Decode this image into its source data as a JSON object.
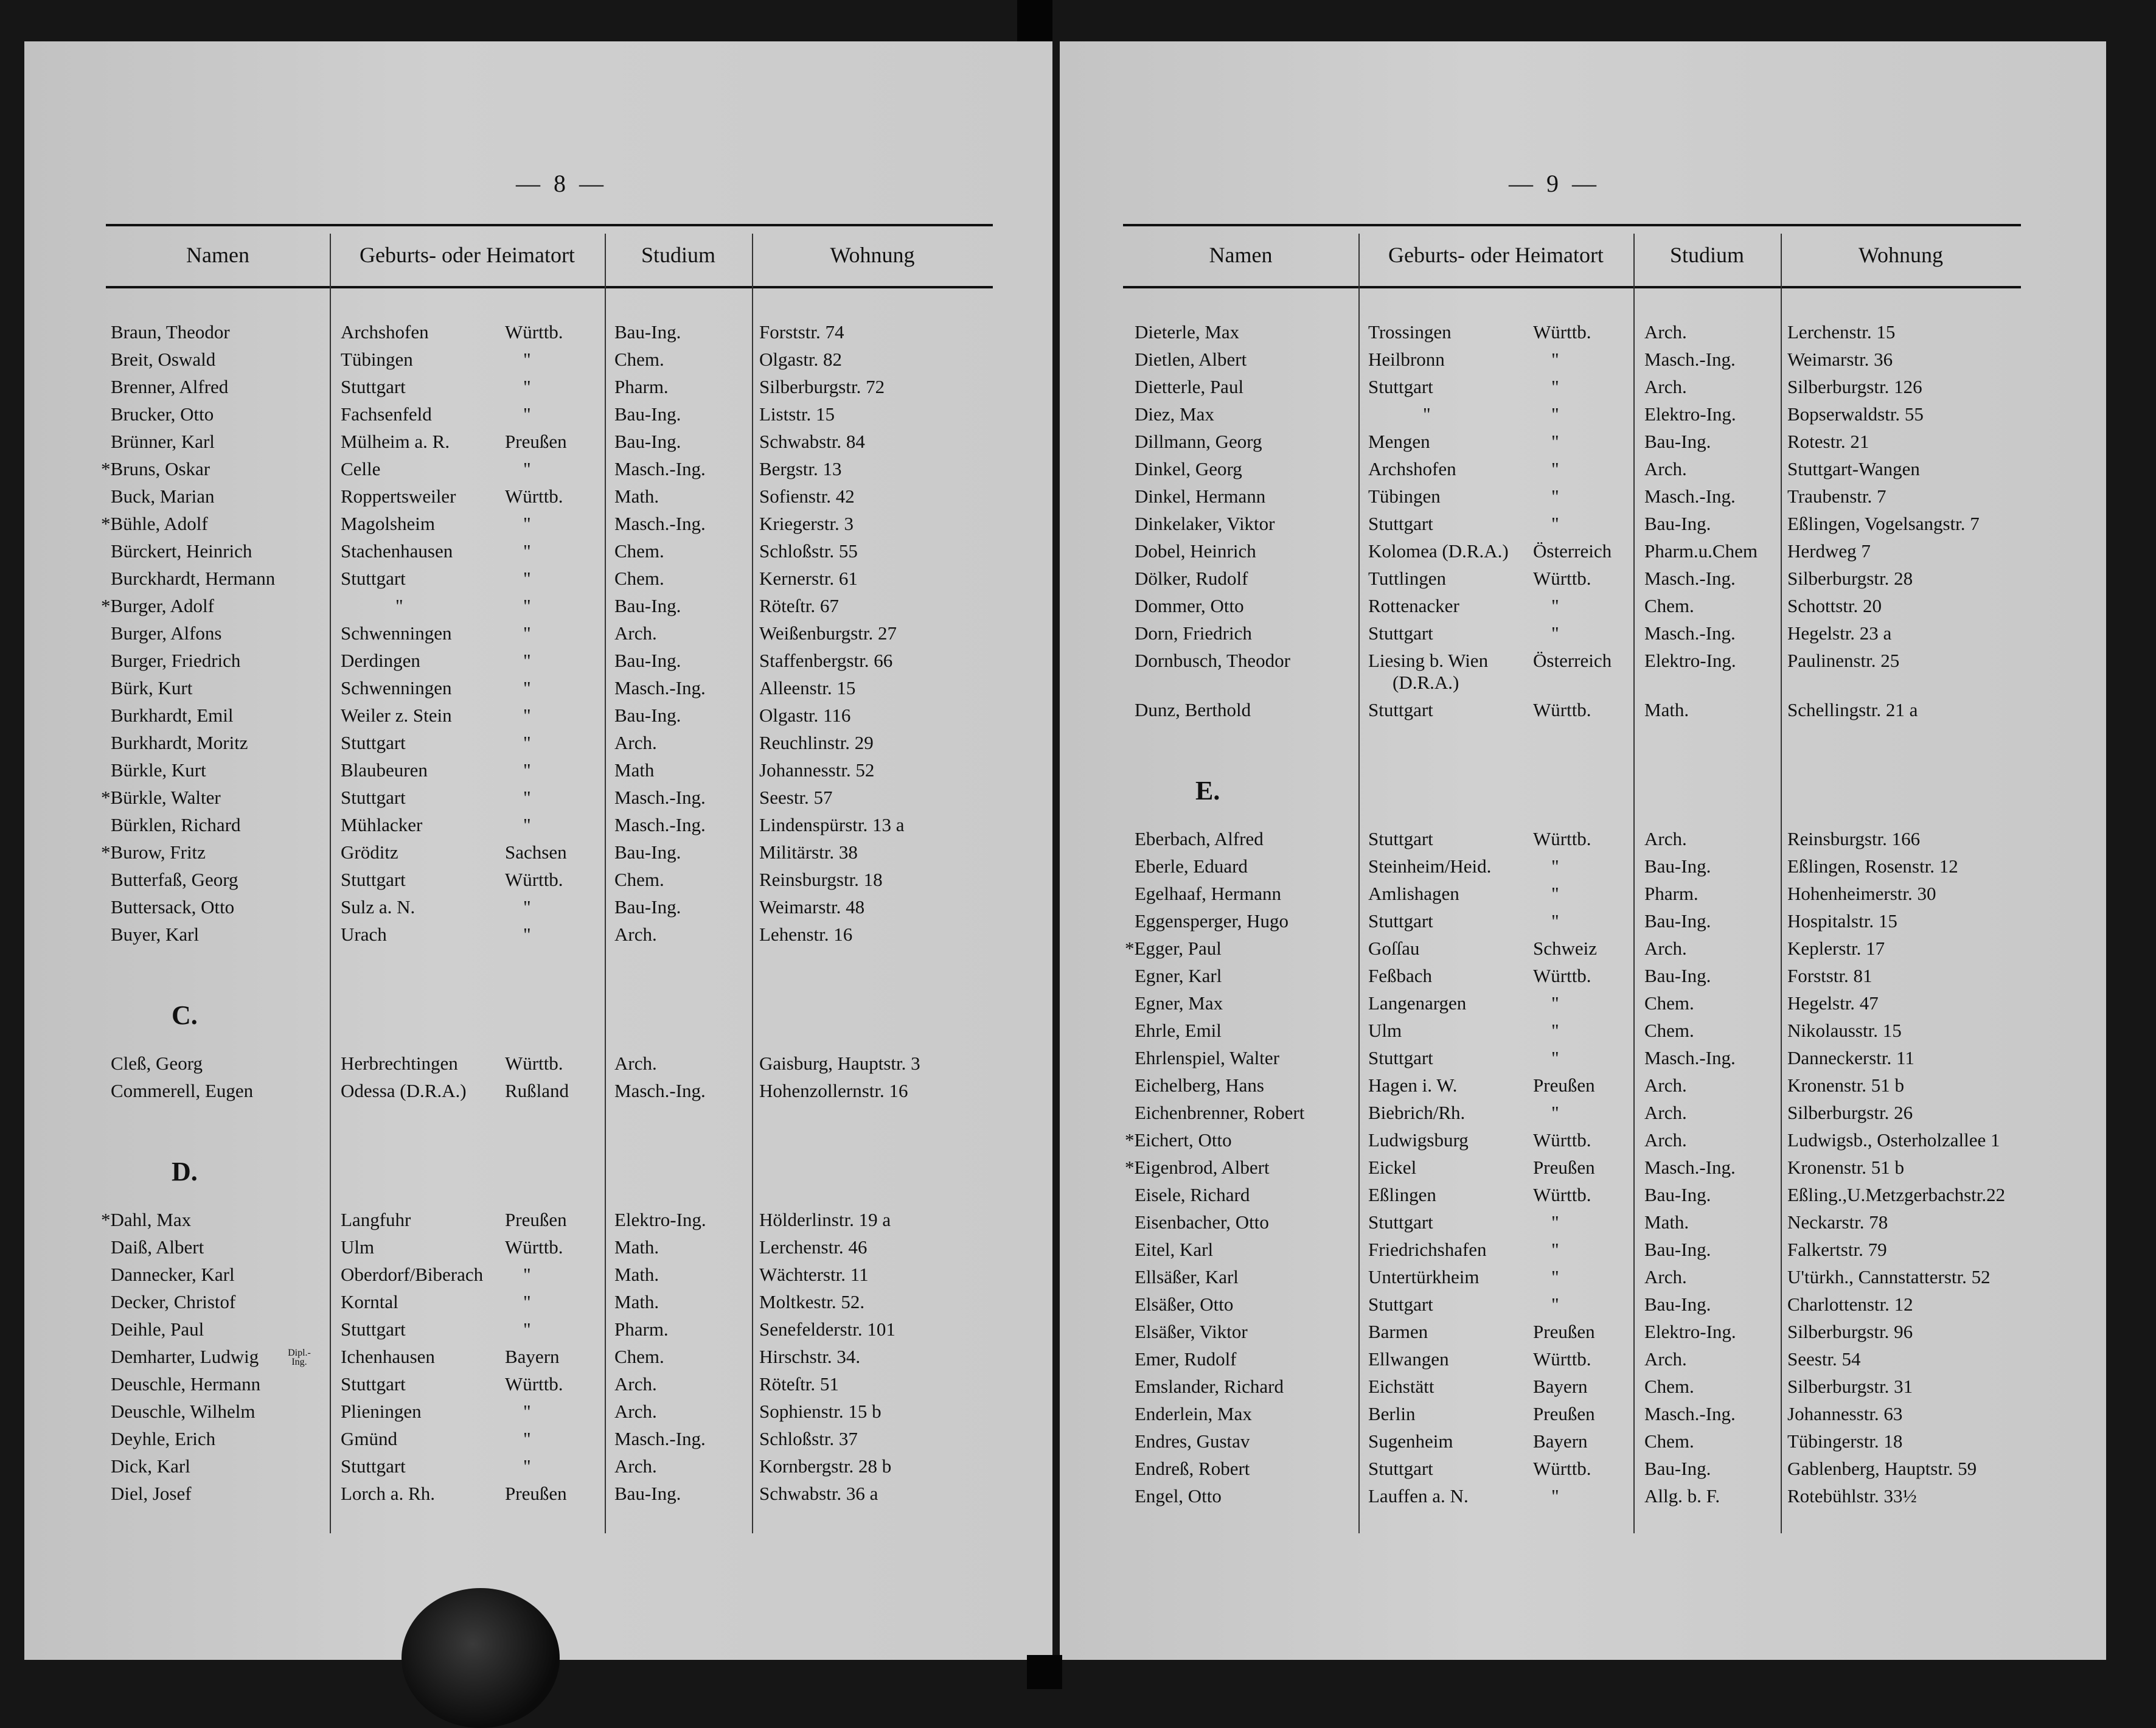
{
  "headers": {
    "name": "Namen",
    "origin": "Geburts- oder Heimatort",
    "study": "Studium",
    "address": "Wohnung"
  },
  "left_page": {
    "page_number": "— 8 —",
    "rows": [
      {
        "name": "Braun, Theodor",
        "place": "Archshofen",
        "state": "Württb.",
        "study": "Bau-Ing.",
        "address": "Forststr. 74"
      },
      {
        "name": "Breit, Oswald",
        "place": "Tübingen",
        "state": "\"",
        "study": "Chem.",
        "address": "Olgastr. 82"
      },
      {
        "name": "Brenner, Alfred",
        "place": "Stuttgart",
        "state": "\"",
        "study": "Pharm.",
        "address": "Silberburgstr. 72"
      },
      {
        "name": "Brucker, Otto",
        "place": "Fachsenfeld",
        "state": "\"",
        "study": "Bau-Ing.",
        "address": "Liststr. 15"
      },
      {
        "name": "Brünner, Karl",
        "place": "Mülheim a. R.",
        "state": "Preußen",
        "study": "Bau-Ing.",
        "address": "Schwabstr. 84"
      },
      {
        "name": "*Bruns, Oskar",
        "place": "Celle",
        "state": "\"",
        "study": "Masch.-Ing.",
        "address": "Bergstr. 13"
      },
      {
        "name": "Buck, Marian",
        "place": "Roppertsweiler",
        "state": "Württb.",
        "study": "Math.",
        "address": "Sofienstr. 42"
      },
      {
        "name": "*Bühle, Adolf",
        "place": "Magolsheim",
        "state": "\"",
        "study": "Masch.-Ing.",
        "address": "Kriegerstr. 3"
      },
      {
        "name": "Bürckert, Heinrich",
        "place": "Stachenhausen",
        "state": "\"",
        "study": "Chem.",
        "address": "Schloßstr. 55"
      },
      {
        "name": "Burckhardt, Hermann",
        "place": "Stuttgart",
        "state": "\"",
        "study": "Chem.",
        "address": "Kernerstr. 61"
      },
      {
        "name": "*Burger, Adolf",
        "place": "\"",
        "state": "\"",
        "study": "Bau-Ing.",
        "address": "Röteſtr. 67"
      },
      {
        "name": "Burger, Alfons",
        "place": "Schwenningen",
        "state": "\"",
        "study": "Arch.",
        "address": "Weißenburgstr. 27"
      },
      {
        "name": "Burger, Friedrich",
        "place": "Derdingen",
        "state": "\"",
        "study": "Bau-Ing.",
        "address": "Staffenbergstr. 66"
      },
      {
        "name": "Bürk, Kurt",
        "place": "Schwenningen",
        "state": "\"",
        "study": "Masch.-Ing.",
        "address": "Alleenstr. 15"
      },
      {
        "name": "Burkhardt, Emil",
        "place": "Weiler z. Stein",
        "state": "\"",
        "study": "Bau-Ing.",
        "address": "Olgastr. 116"
      },
      {
        "name": "Burkhardt, Moritz",
        "place": "Stuttgart",
        "state": "\"",
        "study": "Arch.",
        "address": "Reuchlinstr. 29"
      },
      {
        "name": "Bürkle, Kurt",
        "place": "Blaubeuren",
        "state": "\"",
        "study": "Math",
        "address": "Johannesstr. 52"
      },
      {
        "name": "*Bürkle, Walter",
        "place": "Stuttgart",
        "state": "\"",
        "study": "Masch.-Ing.",
        "address": "Seestr. 57"
      },
      {
        "name": "Bürklen, Richard",
        "place": "Mühlacker",
        "state": "\"",
        "study": "Masch.-Ing.",
        "address": "Lindenspürstr. 13 a"
      },
      {
        "name": "*Burow, Fritz",
        "place": "Gröditz",
        "state": "Sachsen",
        "study": "Bau-Ing.",
        "address": "Militärstr. 38"
      },
      {
        "name": "Butterfaß, Georg",
        "place": "Stuttgart",
        "state": "Württb.",
        "study": "Chem.",
        "address": "Reinsburgstr. 18"
      },
      {
        "name": "Buttersack, Otto",
        "place": "Sulz a. N.",
        "state": "\"",
        "study": "Bau-Ing.",
        "address": "Weimarstr. 48"
      },
      {
        "name": "Buyer, Karl",
        "place": "Urach",
        "state": "\"",
        "study": "Arch.",
        "address": "Lehenstr. 16"
      },
      {
        "letter": "C."
      },
      {
        "name": "Cleß, Georg",
        "place": "Herbrechtingen",
        "state": "Württb.",
        "study": "Arch.",
        "address": "Gaisburg, Hauptstr. 3"
      },
      {
        "name": "Commerell, Eugen",
        "place": "Odessa (D.R.A.)",
        "state": "Rußland",
        "study": "Masch.-Ing.",
        "address": "Hohenzollernstr. 16"
      },
      {
        "letter": "D."
      },
      {
        "name": "*Dahl, Max",
        "place": "Langfuhr",
        "state": "Preußen",
        "study": "Elektro-Ing.",
        "address": "Hölderlinstr. 19 a"
      },
      {
        "name": "Daiß, Albert",
        "place": "Ulm",
        "state": "Württb.",
        "study": "Math.",
        "address": "Lerchenstr. 46"
      },
      {
        "name": "Dannecker, Karl",
        "place": "Oberdorf/Biberach",
        "state": "\"",
        "study": "Math.",
        "address": "Wächterstr. 11"
      },
      {
        "name": "Decker, Christof",
        "place": "Korntal",
        "state": "\"",
        "study": "Math.",
        "address": "Moltkestr. 52."
      },
      {
        "name": "Deihle, Paul",
        "place": "Stuttgart",
        "state": "\"",
        "study": "Pharm.",
        "address": "Senefelderstr. 101"
      },
      {
        "name": "Demharter, Ludwig",
        "note": "Dipl.-Ing.",
        "place": "Ichenhausen",
        "state": "Bayern",
        "study": "Chem.",
        "address": "Hirschstr. 34."
      },
      {
        "name": "Deuschle, Hermann",
        "place": "Stuttgart",
        "state": "Württb.",
        "study": "Arch.",
        "address": "Röteſtr. 51"
      },
      {
        "name": "Deuschle, Wilhelm",
        "place": "Plieningen",
        "state": "\"",
        "study": "Arch.",
        "address": "Sophienstr. 15 b"
      },
      {
        "name": "Deyhle, Erich",
        "place": "Gmünd",
        "state": "\"",
        "study": "Masch.-Ing.",
        "address": "Schloßstr. 37"
      },
      {
        "name": "Dick, Karl",
        "place": "Stuttgart",
        "state": "\"",
        "study": "Arch.",
        "address": "Kornbergstr. 28 b"
      },
      {
        "name": "Diel, Josef",
        "place": "Lorch a. Rh.",
        "state": "Preußen",
        "study": "Bau-Ing.",
        "address": "Schwabstr. 36 a"
      }
    ]
  },
  "right_page": {
    "page_number": "— 9 —",
    "rows": [
      {
        "name": "Dieterle, Max",
        "place": "Trossingen",
        "state": "Württb.",
        "study": "Arch.",
        "address": "Lerchenstr. 15"
      },
      {
        "name": "Dietlen, Albert",
        "place": "Heilbronn",
        "state": "\"",
        "study": "Masch.-Ing.",
        "address": "Weimarstr. 36"
      },
      {
        "name": "Dietterle, Paul",
        "place": "Stuttgart",
        "state": "\"",
        "study": "Arch.",
        "address": "Silberburgstr. 126"
      },
      {
        "name": "Diez, Max",
        "place": "\"",
        "state": "\"",
        "study": "Elektro-Ing.",
        "address": "Bopserwaldstr. 55"
      },
      {
        "name": "Dillmann, Georg",
        "place": "Mengen",
        "state": "\"",
        "study": "Bau-Ing.",
        "address": "Rotestr. 21"
      },
      {
        "name": "Dinkel, Georg",
        "place": "Archshofen",
        "state": "\"",
        "study": "Arch.",
        "address": "Stuttgart-Wangen"
      },
      {
        "name": "Dinkel, Hermann",
        "place": "Tübingen",
        "state": "\"",
        "study": "Masch.-Ing.",
        "address": "Traubenstr. 7"
      },
      {
        "name": "Dinkelaker, Viktor",
        "place": "Stuttgart",
        "state": "\"",
        "study": "Bau-Ing.",
        "address": "Eßlingen, Vogelsangstr. 7"
      },
      {
        "name": "Dobel, Heinrich",
        "place": "Kolomea (D.R.A.)",
        "state": "Österreich",
        "study": "Pharm.u.Chem",
        "address": "Herdweg 7"
      },
      {
        "name": "Dölker, Rudolf",
        "place": "Tuttlingen",
        "state": "Württb.",
        "study": "Masch.-Ing.",
        "address": "Silberburgstr. 28"
      },
      {
        "name": "Dommer, Otto",
        "place": "Rottenacker",
        "state": "\"",
        "study": "Chem.",
        "address": "Schottstr. 20"
      },
      {
        "name": "Dorn, Friedrich",
        "place": "Stuttgart",
        "state": "\"",
        "study": "Masch.-Ing.",
        "address": "Hegelstr. 23 a"
      },
      {
        "name": "Dornbusch, Theodor",
        "place": "Liesing b. Wien",
        "place2": "(D.R.A.)",
        "state": "Österreich",
        "study": "Elektro-Ing.",
        "address": "Paulinenstr. 25"
      },
      {
        "name": "Dunz, Berthold",
        "place": "Stuttgart",
        "state": "Württb.",
        "study": "Math.",
        "address": "Schellingstr. 21 a"
      },
      {
        "letter": "E."
      },
      {
        "name": "Eberbach, Alfred",
        "place": "Stuttgart",
        "state": "Württb.",
        "study": "Arch.",
        "address": "Reinsburgstr. 166"
      },
      {
        "name": "Eberle, Eduard",
        "place": "Steinheim/Heid.",
        "state": "\"",
        "study": "Bau-Ing.",
        "address": "Eßlingen, Rosenstr. 12"
      },
      {
        "name": "Egelhaaf, Hermann",
        "place": "Amlishagen",
        "state": "\"",
        "study": "Pharm.",
        "address": "Hohenheimerstr. 30"
      },
      {
        "name": "Eggensperger, Hugo",
        "place": "Stuttgart",
        "state": "\"",
        "study": "Bau-Ing.",
        "address": "Hospitalstr. 15"
      },
      {
        "name": "*Egger, Paul",
        "place": "Goſſau",
        "state": "Schweiz",
        "study": "Arch.",
        "address": "Keplerstr. 17"
      },
      {
        "name": "Egner, Karl",
        "place": "Feßbach",
        "state": "Württb.",
        "study": "Bau-Ing.",
        "address": "Forststr. 81"
      },
      {
        "name": "Egner, Max",
        "place": "Langenargen",
        "state": "\"",
        "study": "Chem.",
        "address": "Hegelstr. 47"
      },
      {
        "name": "Ehrle, Emil",
        "place": "Ulm",
        "state": "\"",
        "study": "Chem.",
        "address": "Nikolausstr. 15"
      },
      {
        "name": "Ehrlenspiel, Walter",
        "place": "Stuttgart",
        "state": "\"",
        "study": "Masch.-Ing.",
        "address": "Danneckerstr. 11"
      },
      {
        "name": "Eichelberg, Hans",
        "place": "Hagen i. W.",
        "state": "Preußen",
        "study": "Arch.",
        "address": "Kronenstr. 51 b"
      },
      {
        "name": "Eichenbrenner, Robert",
        "place": "Biebrich/Rh.",
        "state": "\"",
        "study": "Arch.",
        "address": "Silberburgstr. 26"
      },
      {
        "name": "*Eichert, Otto",
        "place": "Ludwigsburg",
        "state": "Württb.",
        "study": "Arch.",
        "address": "Ludwigsb., Osterholzallee 1"
      },
      {
        "name": "*Eigenbrod, Albert",
        "place": "Eickel",
        "state": "Preußen",
        "study": "Masch.-Ing.",
        "address": "Kronenstr. 51 b"
      },
      {
        "name": "Eisele, Richard",
        "place": "Eßlingen",
        "state": "Württb.",
        "study": "Bau-Ing.",
        "address": "Eßling.,U.Metzgerbachstr.22"
      },
      {
        "name": "Eisenbacher, Otto",
        "place": "Stuttgart",
        "state": "\"",
        "study": "Math.",
        "address": "Neckarstr. 78"
      },
      {
        "name": "Eitel, Karl",
        "place": "Friedrichshafen",
        "state": "\"",
        "study": "Bau-Ing.",
        "address": "Falkertstr. 79"
      },
      {
        "name": "Ellsäßer, Karl",
        "place": "Untertürkheim",
        "state": "\"",
        "study": "Arch.",
        "address": "U'türkh., Cannstatterstr. 52"
      },
      {
        "name": "Elsäßer, Otto",
        "place": "Stuttgart",
        "state": "\"",
        "study": "Bau-Ing.",
        "address": "Charlottenstr. 12"
      },
      {
        "name": "Elsäßer, Viktor",
        "place": "Barmen",
        "state": "Preußen",
        "study": "Elektro-Ing.",
        "address": "Silberburgstr. 96"
      },
      {
        "name": "Emer, Rudolf",
        "place": "Ellwangen",
        "state": "Württb.",
        "study": "Arch.",
        "address": "Seestr. 54"
      },
      {
        "name": "Emslander, Richard",
        "place": "Eichstätt",
        "state": "Bayern",
        "study": "Chem.",
        "address": "Silberburgstr. 31"
      },
      {
        "name": "Enderlein, Max",
        "place": "Berlin",
        "state": "Preußen",
        "study": "Masch.-Ing.",
        "address": "Johannesstr. 63"
      },
      {
        "name": "Endres, Gustav",
        "place": "Sugenheim",
        "state": "Bayern",
        "study": "Chem.",
        "address": "Tübingerstr. 18"
      },
      {
        "name": "Endreß, Robert",
        "place": "Stuttgart",
        "state": "Württb.",
        "study": "Bau-Ing.",
        "address": "Gablenberg, Hauptstr. 59"
      },
      {
        "name": "Engel, Otto",
        "place": "Lauffen a. N.",
        "state": "\"",
        "study": "Allg. b. F.",
        "address": "Rotebühlstr. 33½"
      }
    ]
  }
}
